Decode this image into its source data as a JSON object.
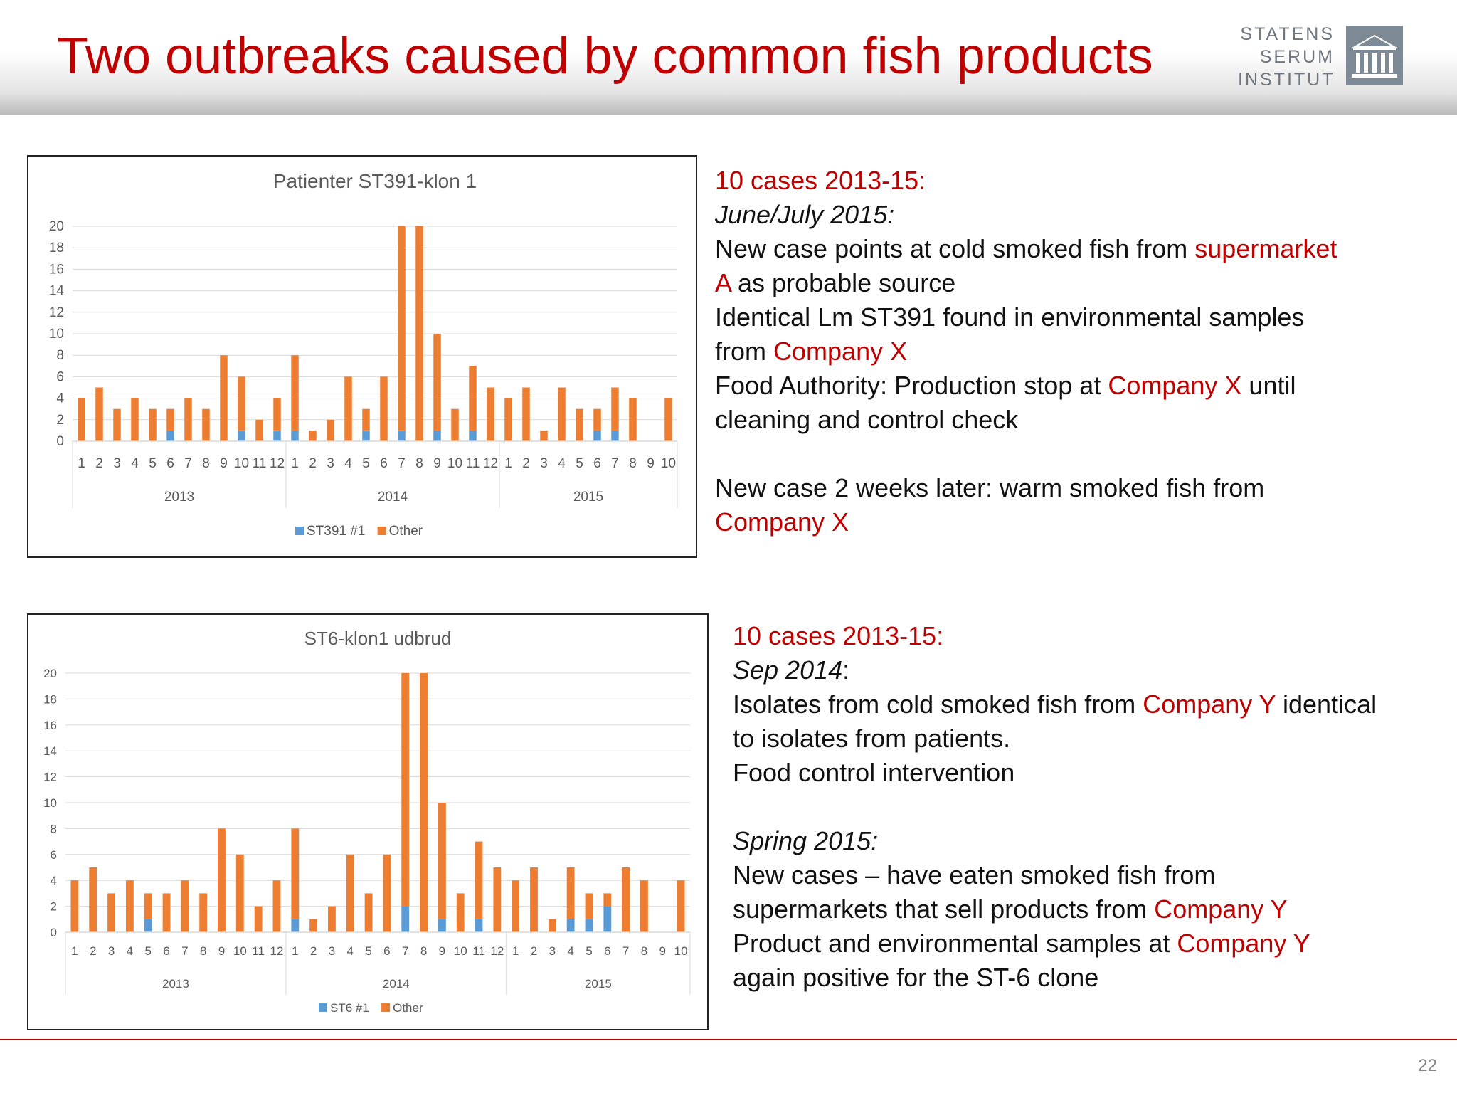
{
  "slide": {
    "title": "Two outbreaks caused by common fish products",
    "page_number": "22",
    "logo_lines": [
      "STATENS",
      "SERUM",
      "INSTITUT"
    ]
  },
  "block1": {
    "lines": [
      {
        "parts": [
          {
            "t": "10 cases 2013-15:",
            "s": "red"
          }
        ]
      },
      {
        "parts": [
          {
            "t": "June/July 2015:",
            "s": "it"
          }
        ]
      },
      {
        "parts": [
          {
            "t": "New case points at cold smoked fish from "
          },
          {
            "t": "supermarket",
            "s": "red"
          }
        ]
      },
      {
        "parts": [
          {
            "t": "A",
            "s": "red"
          },
          {
            "t": "  as probable source"
          }
        ]
      },
      {
        "parts": [
          {
            "t": "Identical Lm ST391 found in environmental samples"
          }
        ]
      },
      {
        "parts": [
          {
            "t": "from "
          },
          {
            "t": "Company X",
            "s": "red"
          }
        ]
      },
      {
        "parts": [
          {
            "t": "Food Authority: Production stop at "
          },
          {
            "t": "Company X",
            "s": "red"
          },
          {
            "t": " until"
          }
        ]
      },
      {
        "parts": [
          {
            "t": "cleaning and control check"
          }
        ]
      },
      {
        "parts": []
      },
      {
        "parts": [
          {
            "t": "New case 2 weeks later: warm smoked fish from"
          }
        ]
      },
      {
        "parts": [
          {
            "t": "Company X",
            "s": "red"
          }
        ]
      }
    ]
  },
  "block2": {
    "lines": [
      {
        "parts": [
          {
            "t": "10 cases 2013-15:",
            "s": "red"
          }
        ]
      },
      {
        "parts": [
          {
            "t": "Sep 2014",
            "s": "it"
          },
          {
            "t": ":"
          }
        ]
      },
      {
        "parts": [
          {
            "t": "Isolates from cold smoked fish from "
          },
          {
            "t": "Company Y",
            "s": "red"
          },
          {
            "t": " identical"
          }
        ]
      },
      {
        "parts": [
          {
            "t": "to isolates from patients."
          }
        ]
      },
      {
        "parts": [
          {
            "t": "Food control intervention"
          }
        ]
      },
      {
        "parts": []
      },
      {
        "parts": [
          {
            "t": "Spring 2015:",
            "s": "it"
          }
        ]
      },
      {
        "parts": [
          {
            "t": "New cases – have eaten smoked fish from"
          }
        ]
      },
      {
        "parts": [
          {
            "t": "supermarkets that sell products from "
          },
          {
            "t": "Company Y",
            "s": "red"
          }
        ]
      },
      {
        "parts": [
          {
            "t": "Product and environmental samples at "
          },
          {
            "t": "Company Y",
            "s": "red"
          }
        ]
      },
      {
        "parts": [
          {
            "t": "again positive for the ST-6 clone"
          }
        ]
      }
    ]
  },
  "colors": {
    "accent_red": "#c00000",
    "series_blue": "#5b9bd5",
    "series_orange": "#ed7d31"
  },
  "chart_data": [
    {
      "type": "bar",
      "stacked": true,
      "title": "Patienter ST391-klon 1",
      "categories": [
        "1",
        "2",
        "3",
        "4",
        "5",
        "6",
        "7",
        "8",
        "9",
        "10",
        "11",
        "12",
        "1",
        "2",
        "3",
        "4",
        "5",
        "6",
        "7",
        "8",
        "9",
        "10",
        "11",
        "12",
        "1",
        "2",
        "3",
        "4",
        "5",
        "6",
        "7",
        "8",
        "9",
        "10"
      ],
      "groups": [
        {
          "label": "2013",
          "count": 12
        },
        {
          "label": "2014",
          "count": 12
        },
        {
          "label": "2015",
          "count": 10
        }
      ],
      "series": [
        {
          "name": "ST391 #1",
          "color": "#5b9bd5",
          "values": [
            0,
            0,
            0,
            0,
            0,
            1,
            0,
            0,
            0,
            1,
            0,
            1,
            1,
            0,
            0,
            0,
            1,
            0,
            1,
            0,
            1,
            0,
            1,
            0,
            0,
            0,
            0,
            0,
            0,
            1,
            1,
            0,
            0,
            0
          ]
        },
        {
          "name": "Other",
          "color": "#ed7d31",
          "values": [
            4,
            5,
            3,
            4,
            3,
            2,
            4,
            3,
            8,
            5,
            2,
            3,
            7,
            1,
            2,
            6,
            2,
            6,
            19,
            20,
            9,
            3,
            6,
            5,
            4,
            5,
            1,
            5,
            3,
            2,
            4,
            4,
            0,
            4
          ]
        }
      ],
      "ylim": [
        0,
        20
      ],
      "yticks": [
        0,
        2,
        4,
        6,
        8,
        10,
        12,
        14,
        16,
        18,
        20
      ],
      "grid": true,
      "legend": "bottom"
    },
    {
      "type": "bar",
      "stacked": true,
      "title": "ST6-klon1 udbrud",
      "categories": [
        "1",
        "2",
        "3",
        "4",
        "5",
        "6",
        "7",
        "8",
        "9",
        "10",
        "11",
        "12",
        "1",
        "2",
        "3",
        "4",
        "5",
        "6",
        "7",
        "8",
        "9",
        "10",
        "11",
        "12",
        "1",
        "2",
        "3",
        "4",
        "5",
        "6",
        "7",
        "8",
        "9",
        "10"
      ],
      "groups": [
        {
          "label": "2013",
          "count": 12
        },
        {
          "label": "2014",
          "count": 12
        },
        {
          "label": "2015",
          "count": 10
        }
      ],
      "series": [
        {
          "name": "ST6 #1",
          "color": "#5b9bd5",
          "values": [
            0,
            0,
            0,
            0,
            1,
            0,
            0,
            0,
            0,
            0,
            0,
            0,
            1,
            0,
            0,
            0,
            0,
            0,
            2,
            0,
            1,
            0,
            1,
            0,
            0,
            0,
            0,
            1,
            1,
            2,
            0,
            0,
            0,
            0
          ]
        },
        {
          "name": "Other",
          "color": "#ed7d31",
          "values": [
            4,
            5,
            3,
            4,
            2,
            3,
            4,
            3,
            8,
            6,
            2,
            4,
            7,
            1,
            2,
            6,
            3,
            6,
            18,
            20,
            9,
            3,
            6,
            5,
            4,
            5,
            1,
            4,
            2,
            1,
            5,
            4,
            0,
            4
          ]
        }
      ],
      "ylim": [
        0,
        20
      ],
      "yticks": [
        0,
        2,
        4,
        6,
        8,
        10,
        12,
        14,
        16,
        18,
        20
      ],
      "grid": true,
      "legend": "bottom"
    }
  ]
}
